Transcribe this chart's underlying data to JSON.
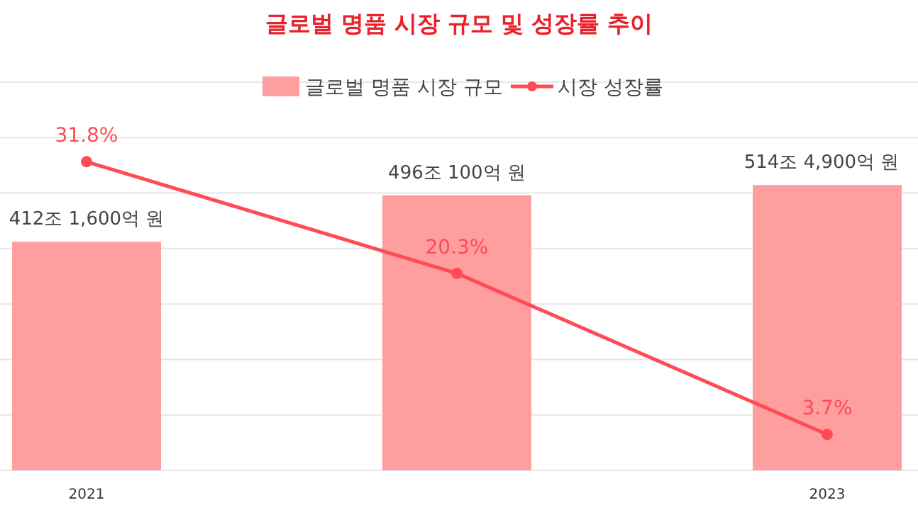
{
  "chart_data": {
    "type": "bar",
    "title": "글로벌 명품 시장 규모 및 성장률 추이",
    "categories": [
      "2021",
      null,
      "2023"
    ],
    "series": [
      {
        "name": "글로벌 명품 시장 규모",
        "color": "#ff9e9e",
        "values": [
          412.16,
          496.01,
          514.49
        ],
        "value_labels": [
          "412조 1,600억 원",
          "496조 100억 원",
          "514조 4,900억 원"
        ]
      },
      {
        "name": "시장 성장률",
        "type": "line",
        "axis": "y2",
        "color": "#ff4b55",
        "values": [
          31.8,
          20.3,
          3.7
        ],
        "value_labels": [
          "31.8%",
          "20.3%",
          "3.7%"
        ]
      }
    ],
    "ylim": [
      0,
      700
    ],
    "yticks": [
      {
        "value": 0,
        "label": null
      },
      {
        "value": 100,
        "label": null
      },
      {
        "value": 200,
        "label": null
      },
      {
        "value": 300,
        "label": null
      },
      {
        "value": 400,
        "label": null
      },
      {
        "value": 500,
        "label": null
      },
      {
        "value": 600,
        "label": null
      },
      {
        "value": 700,
        "label": null
      }
    ],
    "y2lim": [
      0,
      40
    ],
    "grid": "y",
    "tick_labels": "x",
    "legend": "top",
    "marker": "circle"
  }
}
